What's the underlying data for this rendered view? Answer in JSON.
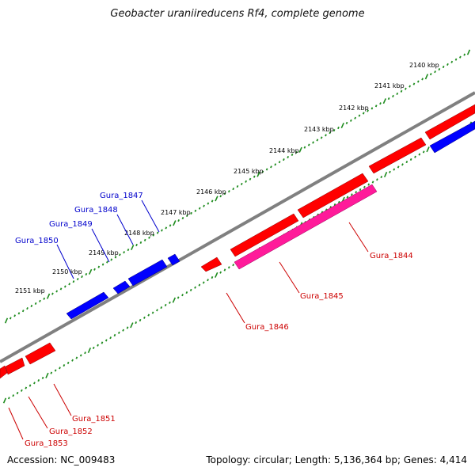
{
  "title": "Geobacter uraniireducens Rf4, complete genome",
  "footer": {
    "accession": "Accession: NC_009483",
    "stats": "Topology: circular; Length: 5,136,364 bp; Genes: 4,414"
  },
  "colors": {
    "forward_gene": "#ff0000",
    "reverse_gene": "#0000ff",
    "rna_gene": "#ff1a9a",
    "backbone": "#808080",
    "tick": "#1e8c1e"
  },
  "kbp_labels": [
    "2140 kbp",
    "2141 kbp",
    "2142 kbp",
    "2143 kbp",
    "2144 kbp",
    "2145 kbp",
    "2146 kbp",
    "2147 kbp",
    "2148 kbp",
    "2149 kbp",
    "2150 kbp",
    "2151 kbp"
  ],
  "reverse_gene_labels": [
    "Gura_1847",
    "Gura_1848",
    "Gura_1849",
    "Gura_1850"
  ],
  "forward_gene_labels": [
    "Gura_1844",
    "Gura_1845",
    "Gura_1846",
    "Gura_1851",
    "Gura_1852",
    "Gura_1853"
  ]
}
